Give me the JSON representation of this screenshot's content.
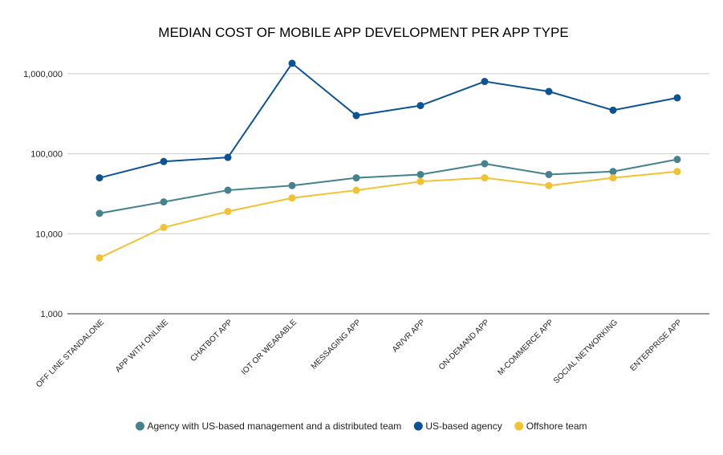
{
  "chart_data": {
    "type": "line",
    "title": "MEDIAN COST OF MOBILE APP DEVELOPMENT PER APP TYPE",
    "xlabel": "",
    "ylabel": "",
    "yscale": "log",
    "ylim": [
      1000,
      1000000
    ],
    "yticks": [
      "1,000",
      "10,000",
      "100,000",
      "1,000,000"
    ],
    "ytick_values": [
      1000,
      10000,
      100000,
      1000000
    ],
    "grid": true,
    "legend_position": "bottom",
    "categories": [
      "OFF LINE STANDALONE",
      "APP WITH ONLINE",
      "CHATBOT APP",
      "IOT OR WEARABLE",
      "MESSAGING APP",
      "AR/VR APP",
      "ON-DEMAND APP",
      "M-COMMERCE APP",
      "SOCIAL NETWORKING",
      "ENTERPRISE APP"
    ],
    "series": [
      {
        "name": "Agency with US-based management and a distributed team",
        "color": "#45818e",
        "values": [
          18000,
          25000,
          35000,
          40000,
          50000,
          55000,
          75000,
          55000,
          60000,
          85000
        ]
      },
      {
        "name": "US-based agency",
        "color": "#0b5394",
        "values": [
          50000,
          80000,
          90000,
          1350000,
          300000,
          400000,
          800000,
          600000,
          350000,
          500000
        ]
      },
      {
        "name": "Offshore team",
        "color": "#f1c232",
        "values": [
          5000,
          12000,
          19000,
          28000,
          35000,
          45000,
          50000,
          40000,
          50000,
          60000
        ]
      }
    ]
  }
}
